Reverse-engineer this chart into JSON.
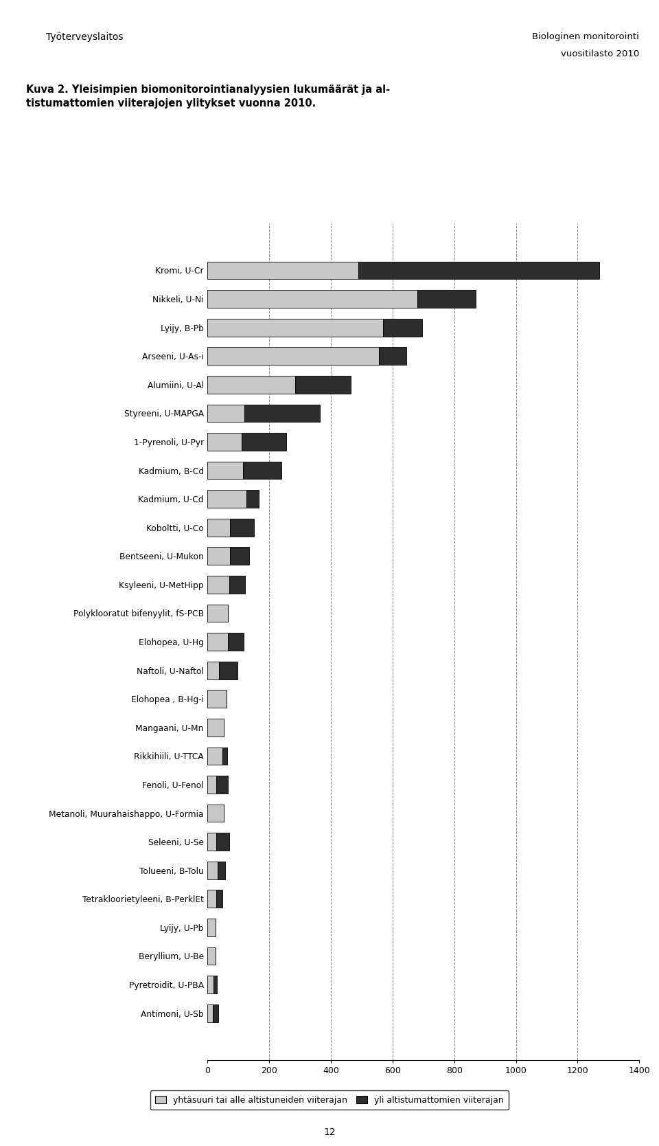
{
  "categories": [
    "Kromi, U-Cr",
    "Nikkeli, U-Ni",
    "Lyijy, B-Pb",
    "Arseeni, U-As-i",
    "Alumiini, U-Al",
    "Styreeni, U-MAPGA",
    "1-Pyrenoli, U-Pyr",
    "Kadmium, B-Cd",
    "Kadmium, U-Cd",
    "Koboltti, U-Co",
    "Bentseeni, U-Mukon",
    "Ksyleeni, U-MetHipp",
    "Polyklooratut bifenyylit, fS-PCB",
    "Elohopea, U-Hg",
    "Naftoli, U-Naftol",
    "Elohopea , B-Hg-i",
    "Mangaani, U-Mn",
    "Rikkihiili, U-TTCA",
    "Fenoli, U-Fenol",
    "Metanoli, Muurahaishappo, U-Formia",
    "Seleeni, U-Se",
    "Tolueeni, B-Tolu",
    "Tetrakloorietyleeni, B-PerklEt",
    "Lyijy, U-Pb",
    "Beryllium, U-Be",
    "Pyretroidit, U-PBA",
    "Antimoni, U-Sb"
  ],
  "light_values": [
    490,
    680,
    570,
    555,
    285,
    120,
    110,
    115,
    125,
    72,
    72,
    70,
    65,
    65,
    38,
    62,
    52,
    48,
    28,
    52,
    28,
    32,
    28,
    26,
    26,
    20,
    16
  ],
  "dark_values": [
    780,
    190,
    125,
    90,
    180,
    245,
    145,
    125,
    42,
    78,
    62,
    52,
    0,
    52,
    58,
    0,
    0,
    16,
    38,
    0,
    42,
    26,
    20,
    0,
    0,
    10,
    18
  ],
  "light_color": "#c8c8c8",
  "dark_color": "#2d2d2d",
  "xlim": [
    0,
    1400
  ],
  "xticks": [
    0,
    200,
    400,
    600,
    800,
    1000,
    1200,
    1400
  ],
  "background_color": "#ffffff",
  "legend_light": "yhtäsuuri tai alle altistuneiden viiterajan",
  "legend_dark": "yli altistumattomien viiterajan",
  "top_right_line1": "Biologinen monitorointi",
  "top_right_line2": "vuositilasto 2010",
  "header_bold": "Kuva 2. Yleisimpien biomonitorointianalyysien lukumäärät ja al-\ntistumattomien viiterajojen ylitykset vuonna 2010.",
  "institution": "Työterveyslaitos",
  "page_number": "12"
}
